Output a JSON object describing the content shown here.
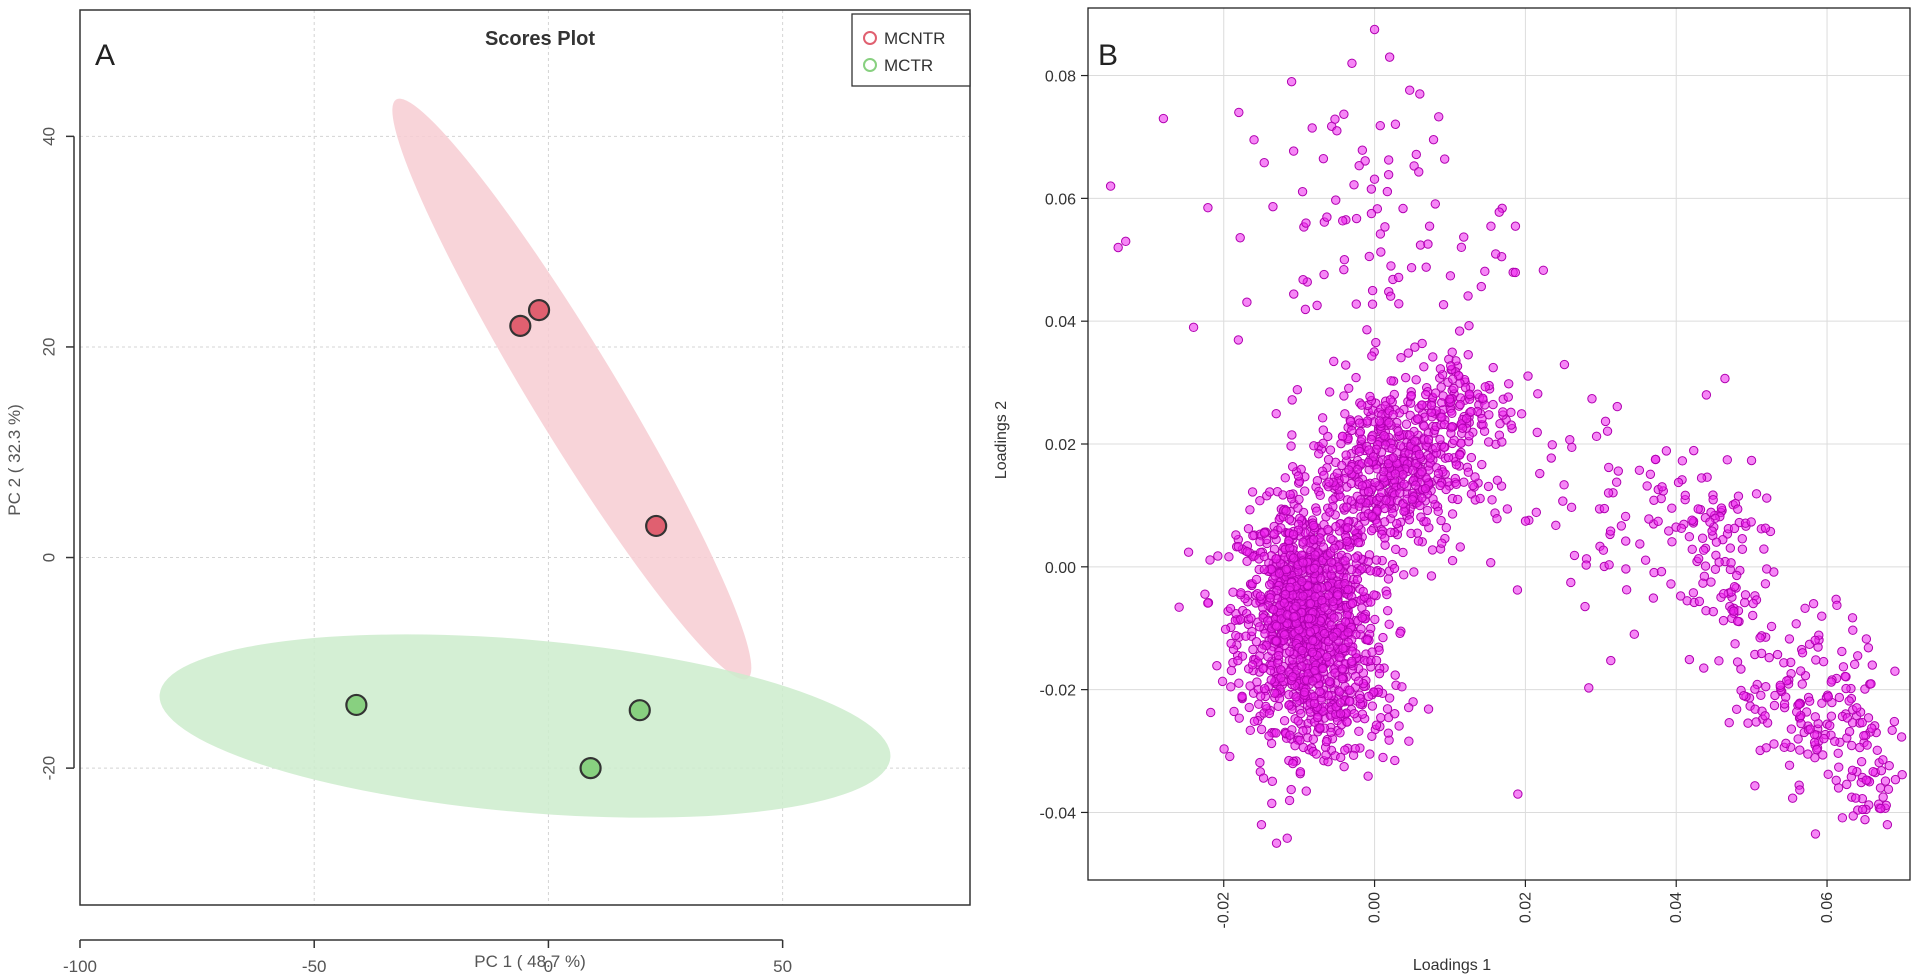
{
  "chart_data": [
    {
      "panel": "A",
      "type": "scatter",
      "title": "Scores Plot",
      "xlabel": "PC 1 ( 48.7 %)",
      "ylabel": "PC 2 ( 32.3 %)",
      "xlim": [
        -100,
        90
      ],
      "ylim": [
        -33,
        52
      ],
      "xticks": [
        -100,
        -50,
        0,
        50
      ],
      "yticks": [
        -20,
        0,
        20,
        40
      ],
      "grid": true,
      "legend": "top-right",
      "series": [
        {
          "name": "MCNTR",
          "color": "#e06070",
          "points": [
            [
              -6,
              22
            ],
            [
              -2,
              23.5
            ],
            [
              23,
              3
            ]
          ],
          "ellipse": {
            "center": [
              5,
              16
            ],
            "ends": [
              [
                -32.5,
                43.5
              ],
              [
                42.5,
                -11.5
              ]
            ],
            "minor_half": 4.1,
            "fill": "#f7ccd2"
          }
        },
        {
          "name": "MCTR",
          "color": "#88d080",
          "points": [
            [
              -41,
              -14
            ],
            [
              19.5,
              -14.5
            ],
            [
              9,
              -20
            ]
          ],
          "ellipse": {
            "center": [
              -5,
              -16
            ],
            "ends": [
              [
                -83,
                -13
              ],
              [
                73,
                -19
              ]
            ],
            "minor_half": 8.2,
            "fill": "#cdeccd"
          }
        }
      ]
    },
    {
      "panel": "B",
      "type": "scatter",
      "title": "",
      "xlabel": "Loadings 1",
      "ylabel": "Loadings 2",
      "xlim": [
        -0.038,
        0.071
      ],
      "ylim": [
        -0.051,
        0.091
      ],
      "xticks": [
        -0.02,
        0,
        0.02,
        0.04,
        0.06
      ],
      "xtick_labels": [
        "-0.02",
        "0.00",
        "0.02",
        "0.04",
        "0.06"
      ],
      "yticks": [
        -0.04,
        -0.02,
        0,
        0.02,
        0.04,
        0.06,
        0.08
      ],
      "ytick_labels": [
        "-0.04",
        "-0.02",
        "0.00",
        "0.02",
        "0.04",
        "0.06",
        "0.08"
      ],
      "grid": true,
      "point_color": "#ee22ee",
      "clusters": [
        {
          "cx": -0.009,
          "cy": -0.008,
          "sx": 0.0045,
          "sy": 0.009,
          "n": 1200
        },
        {
          "cx": 0.002,
          "cy": 0.016,
          "sx": 0.005,
          "sy": 0.007,
          "n": 550
        },
        {
          "cx": 0.012,
          "cy": 0.026,
          "sx": 0.0035,
          "sy": 0.005,
          "n": 120
        },
        {
          "cx": -0.006,
          "cy": -0.023,
          "sx": 0.005,
          "sy": 0.005,
          "n": 150
        },
        {
          "cx": 0.0,
          "cy": 0.055,
          "sx": 0.009,
          "sy": 0.011,
          "n": 90
        },
        {
          "cx": 0.03,
          "cy": 0.01,
          "sx": 0.008,
          "sy": 0.01,
          "n": 80
        },
        {
          "cx": 0.045,
          "cy": 0.002,
          "sx": 0.004,
          "sy": 0.008,
          "n": 110
        },
        {
          "cx": 0.058,
          "cy": -0.022,
          "sx": 0.005,
          "sy": 0.007,
          "n": 160
        },
        {
          "cx": 0.066,
          "cy": -0.034,
          "sx": 0.0025,
          "sy": 0.004,
          "n": 50
        }
      ],
      "extra_points": [
        [
          -0.035,
          0.062
        ],
        [
          -0.034,
          0.052
        ],
        [
          -0.033,
          0.053
        ],
        [
          -0.028,
          0.073
        ],
        [
          -0.018,
          0.074
        ],
        [
          -0.011,
          0.079
        ],
        [
          -0.003,
          0.082
        ],
        [
          0.0,
          0.0875
        ],
        [
          0.002,
          0.083
        ],
        [
          0.006,
          0.077
        ],
        [
          -0.005,
          0.071
        ],
        [
          -0.024,
          0.039
        ],
        [
          0.044,
          0.028
        ],
        [
          0.019,
          -0.037
        ],
        [
          -0.015,
          -0.042
        ],
        [
          -0.013,
          -0.045
        ],
        [
          0.068,
          -0.042
        ],
        [
          0.069,
          -0.017
        ],
        [
          0.066,
          -0.016
        ]
      ]
    }
  ],
  "panels": {
    "a_label": "A",
    "b_label": "B"
  },
  "legend_items": [
    "MCNTR",
    "MCTR"
  ]
}
